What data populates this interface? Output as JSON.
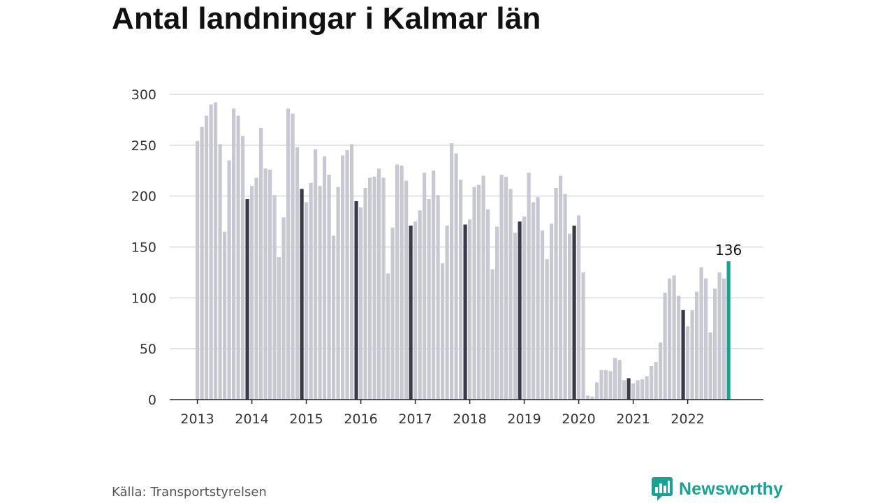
{
  "title": "Antal landningar i Kalmar län",
  "source": "Källa: Transportstyrelsen",
  "brand": "Newsworthy",
  "colors": {
    "bar": "#c8c8d2",
    "bar_highlight": "#3a3a48",
    "bar_latest": "#17a294",
    "grid": "#d9d9df",
    "axis": "#222222",
    "brand": "#17a294"
  },
  "chart_data": {
    "type": "bar",
    "title": "Antal landningar i Kalmar län",
    "xlabel": "",
    "ylabel": "",
    "ylim": [
      0,
      300
    ],
    "yticks": [
      0,
      50,
      100,
      150,
      200,
      250,
      300
    ],
    "xticks": [
      "2013",
      "2014",
      "2015",
      "2016",
      "2017",
      "2018",
      "2019",
      "2020",
      "2021",
      "2022"
    ],
    "grid": true,
    "start_month": "2013-01",
    "highlight_month": 11,
    "latest_label": "136",
    "values": [
      254,
      268,
      279,
      290,
      292,
      251,
      165,
      235,
      286,
      279,
      259,
      197,
      210,
      218,
      267,
      227,
      226,
      201,
      140,
      179,
      286,
      281,
      248,
      207,
      194,
      213,
      246,
      210,
      239,
      221,
      161,
      209,
      240,
      245,
      251,
      195,
      189,
      208,
      218,
      219,
      227,
      218,
      124,
      169,
      231,
      230,
      215,
      171,
      175,
      186,
      223,
      197,
      225,
      201,
      134,
      171,
      252,
      242,
      216,
      172,
      177,
      209,
      211,
      220,
      187,
      128,
      170,
      221,
      219,
      207,
      164,
      175,
      180,
      223,
      194,
      199,
      166,
      138,
      173,
      208,
      220,
      202,
      163,
      171,
      181,
      125,
      4,
      3,
      17,
      29,
      29,
      28,
      41,
      39,
      19,
      21,
      16,
      19,
      20,
      23,
      33,
      37,
      56,
      105,
      119,
      122,
      102,
      88,
      72,
      88,
      106,
      130,
      119,
      66,
      109,
      125,
      119,
      136
    ]
  }
}
